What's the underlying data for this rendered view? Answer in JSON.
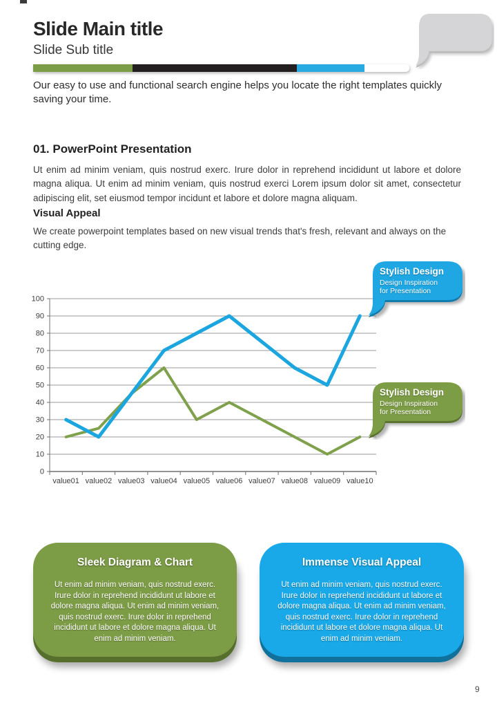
{
  "page": {
    "number": "9",
    "background": "#ffffff"
  },
  "header": {
    "title": "Slide Main title",
    "subtitle": "Slide Sub title",
    "intro": "Our easy to use and functional search engine helps you locate the right templates quickly saving your time.",
    "bar_segments": [
      {
        "name": "green",
        "color": "#7d9c46"
      },
      {
        "name": "black",
        "color": "#231f20"
      },
      {
        "name": "blue",
        "color": "#29abe2"
      },
      {
        "name": "white",
        "color": "#ffffff"
      }
    ],
    "bubble": {
      "color": "#d5d5d7",
      "rim": "#bdbdbf"
    }
  },
  "section": {
    "heading": "01. PowerPoint Presentation",
    "body": "Ut enim ad minim veniam, quis nostrud exerc. Irure dolor in reprehend incididunt ut labore et dolore magna aliqua. Ut enim ad minim veniam, quis nostrud exerci  Lorem ipsum dolor sit amet, consectetur adipiscing elit, set eiusmod tempor incidunt et labore et dolore magna aliquam.",
    "subheading": "Visual Appeal",
    "subbody": "We create powerpoint templates based on new visual trends that's fresh, relevant and always on the cutting edge."
  },
  "chart_data": {
    "type": "line",
    "title": "",
    "xlabel": "",
    "ylabel": "",
    "categories": [
      "value01",
      "value02",
      "value03",
      "value04",
      "value05",
      "value06",
      "value07",
      "value08",
      "value09",
      "value10"
    ],
    "series": [
      {
        "name": "green-series",
        "color": "#7fa14b",
        "values": [
          20,
          25,
          45,
          60,
          30,
          40,
          30,
          20,
          10,
          20
        ]
      },
      {
        "name": "blue-series",
        "color": "#1ca6e0",
        "values": [
          30,
          20,
          45,
          70,
          80,
          90,
          75,
          60,
          50,
          90
        ]
      }
    ],
    "ylim": [
      0,
      100
    ],
    "ytick_step": 10,
    "grid": true,
    "gridline_color": "#9a9a9a",
    "legend_position": "none"
  },
  "callouts": [
    {
      "title": "Stylish Design",
      "line1": "Design Inspiration",
      "line2": "for Presentation",
      "color": "#1fa7e3",
      "rim": "#0f7cad"
    },
    {
      "title": "Stylish Design",
      "line1": "Design Inspiration",
      "line2": "for Presentation",
      "color": "#7d9c46",
      "rim": "#5a7430"
    }
  ],
  "cards": [
    {
      "title": "Sleek Diagram & Chart",
      "body": "Ut enim ad minim veniam, quis nostrud exerc. Irure dolor in reprehend incididunt ut labore et dolore magna aliqua. Ut enim ad minim veniam, quis nostrud exerc. Irure dolor in reprehend incididunt ut labore et dolore magna aliqua. Ut enim ad minim veniam.",
      "color": "#7d9c46",
      "rim": "#566f2d"
    },
    {
      "title": "Immense Visual Appeal",
      "body": "Ut enim ad minim veniam, quis nostrud exerc. Irure dolor in reprehend incididunt ut labore et dolore magna aliqua. Ut enim ad minim veniam, quis nostrud exerc. Irure dolor in reprehend incididunt ut labore et dolore magna aliqua. Ut enim ad minim veniam.",
      "color": "#19a9e8",
      "rim": "#10719c"
    }
  ]
}
